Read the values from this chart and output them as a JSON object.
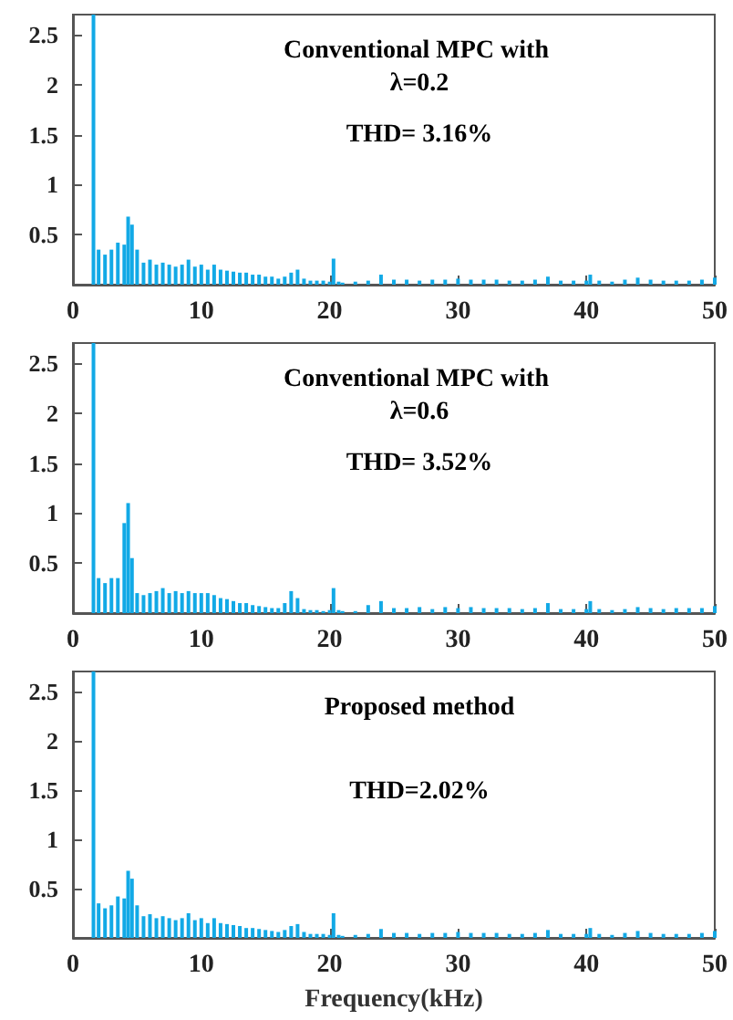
{
  "chart_data": [
    {
      "type": "bar",
      "title": "Conventional MPC with λ=0.2",
      "annotations": [
        "THD= 3.16%"
      ],
      "color": "#12a9e6",
      "xlim": [
        0,
        50
      ],
      "xticks": [
        0,
        10,
        20,
        30,
        40,
        50
      ],
      "ylim": [
        0,
        2.7
      ],
      "yticks": [
        0.5,
        1,
        1.5,
        2,
        2.5
      ],
      "grid": false,
      "x": [
        1.6,
        2,
        2.5,
        3,
        3.5,
        4,
        4.3,
        4.6,
        5,
        5.5,
        6,
        6.5,
        7,
        7.5,
        8,
        8.5,
        9,
        9.5,
        10,
        10.5,
        11,
        11.5,
        12,
        12.5,
        13,
        13.5,
        14,
        14.5,
        15,
        15.5,
        16,
        16.5,
        17,
        17.5,
        18,
        18.5,
        19,
        19.5,
        20,
        20.3,
        20.7,
        21,
        22,
        23,
        24,
        25,
        26,
        27,
        28,
        29,
        30,
        31,
        32,
        33,
        34,
        35,
        36,
        37,
        38,
        39,
        40,
        40.3,
        41,
        42,
        43,
        44,
        45,
        46,
        47,
        48,
        49,
        50
      ],
      "values": [
        2.7,
        0.35,
        0.3,
        0.35,
        0.42,
        0.4,
        0.68,
        0.6,
        0.35,
        0.22,
        0.25,
        0.2,
        0.22,
        0.2,
        0.18,
        0.2,
        0.25,
        0.18,
        0.2,
        0.15,
        0.2,
        0.15,
        0.14,
        0.13,
        0.12,
        0.12,
        0.1,
        0.1,
        0.08,
        0.08,
        0.06,
        0.08,
        0.12,
        0.15,
        0.06,
        0.04,
        0.04,
        0.04,
        0.03,
        0.26,
        0.03,
        0.02,
        0.03,
        0.04,
        0.1,
        0.05,
        0.05,
        0.04,
        0.05,
        0.05,
        0.06,
        0.05,
        0.05,
        0.05,
        0.04,
        0.04,
        0.05,
        0.08,
        0.04,
        0.04,
        0.04,
        0.1,
        0.04,
        0.03,
        0.05,
        0.07,
        0.05,
        0.04,
        0.04,
        0.04,
        0.05,
        0.07
      ]
    },
    {
      "type": "bar",
      "title": "Conventional MPC with λ=0.6",
      "annotations": [
        "THD= 3.52%"
      ],
      "color": "#12a9e6",
      "xlim": [
        0,
        50
      ],
      "xticks": [
        0,
        10,
        20,
        30,
        40,
        50
      ],
      "ylim": [
        0,
        2.7
      ],
      "yticks": [
        0.5,
        1,
        1.5,
        2,
        2.5
      ],
      "grid": false,
      "x": [
        1.6,
        2,
        2.5,
        3,
        3.5,
        4,
        4.3,
        4.6,
        5,
        5.5,
        6,
        6.5,
        7,
        7.5,
        8,
        8.5,
        9,
        9.5,
        10,
        10.5,
        11,
        11.5,
        12,
        12.5,
        13,
        13.5,
        14,
        14.5,
        15,
        15.5,
        16,
        16.5,
        17,
        17.5,
        18,
        18.5,
        19,
        19.5,
        20,
        20.3,
        20.7,
        21,
        22,
        23,
        24,
        25,
        26,
        27,
        28,
        29,
        30,
        31,
        32,
        33,
        34,
        35,
        36,
        37,
        38,
        39,
        40,
        40.3,
        41,
        42,
        43,
        44,
        45,
        46,
        47,
        48,
        49,
        50
      ],
      "values": [
        2.7,
        0.35,
        0.3,
        0.35,
        0.35,
        0.9,
        1.1,
        0.55,
        0.2,
        0.18,
        0.2,
        0.22,
        0.25,
        0.2,
        0.22,
        0.2,
        0.22,
        0.2,
        0.2,
        0.2,
        0.18,
        0.15,
        0.14,
        0.12,
        0.1,
        0.1,
        0.08,
        0.07,
        0.06,
        0.05,
        0.05,
        0.1,
        0.22,
        0.15,
        0.04,
        0.03,
        0.03,
        0.02,
        0.03,
        0.25,
        0.03,
        0.02,
        0.02,
        0.08,
        0.12,
        0.05,
        0.05,
        0.06,
        0.04,
        0.06,
        0.05,
        0.06,
        0.05,
        0.05,
        0.05,
        0.04,
        0.05,
        0.1,
        0.04,
        0.04,
        0.04,
        0.12,
        0.04,
        0.03,
        0.04,
        0.06,
        0.05,
        0.04,
        0.05,
        0.05,
        0.05,
        0.07
      ]
    },
    {
      "type": "bar",
      "title": "Proposed method",
      "annotations": [
        "THD=2.02%"
      ],
      "xlabel": "Frequency(kHz)",
      "color": "#12a9e6",
      "xlim": [
        0,
        50
      ],
      "xticks": [
        0,
        10,
        20,
        30,
        40,
        50
      ],
      "ylim": [
        0,
        2.7
      ],
      "yticks": [
        0.5,
        1,
        1.5,
        2,
        2.5
      ],
      "grid": false,
      "x": [
        1.6,
        2,
        2.5,
        3,
        3.5,
        4,
        4.3,
        4.6,
        5,
        5.5,
        6,
        6.5,
        7,
        7.5,
        8,
        8.5,
        9,
        9.5,
        10,
        10.5,
        11,
        11.5,
        12,
        12.5,
        13,
        13.5,
        14,
        14.5,
        15,
        15.5,
        16,
        16.5,
        17,
        17.5,
        18,
        18.5,
        19,
        19.5,
        20,
        20.3,
        20.7,
        21,
        22,
        23,
        24,
        25,
        26,
        27,
        28,
        29,
        30,
        31,
        32,
        33,
        34,
        35,
        36,
        37,
        38,
        39,
        40,
        40.3,
        41,
        42,
        43,
        44,
        45,
        46,
        47,
        48,
        49,
        50
      ],
      "values": [
        2.7,
        0.35,
        0.3,
        0.33,
        0.42,
        0.4,
        0.68,
        0.6,
        0.33,
        0.22,
        0.24,
        0.2,
        0.22,
        0.2,
        0.18,
        0.2,
        0.25,
        0.18,
        0.2,
        0.15,
        0.2,
        0.15,
        0.14,
        0.13,
        0.12,
        0.1,
        0.1,
        0.09,
        0.08,
        0.07,
        0.06,
        0.08,
        0.12,
        0.14,
        0.06,
        0.04,
        0.04,
        0.04,
        0.03,
        0.25,
        0.03,
        0.02,
        0.03,
        0.04,
        0.09,
        0.05,
        0.05,
        0.04,
        0.05,
        0.05,
        0.06,
        0.05,
        0.05,
        0.05,
        0.04,
        0.04,
        0.05,
        0.08,
        0.04,
        0.04,
        0.04,
        0.1,
        0.04,
        0.03,
        0.05,
        0.07,
        0.05,
        0.04,
        0.04,
        0.04,
        0.05,
        0.07
      ]
    }
  ]
}
